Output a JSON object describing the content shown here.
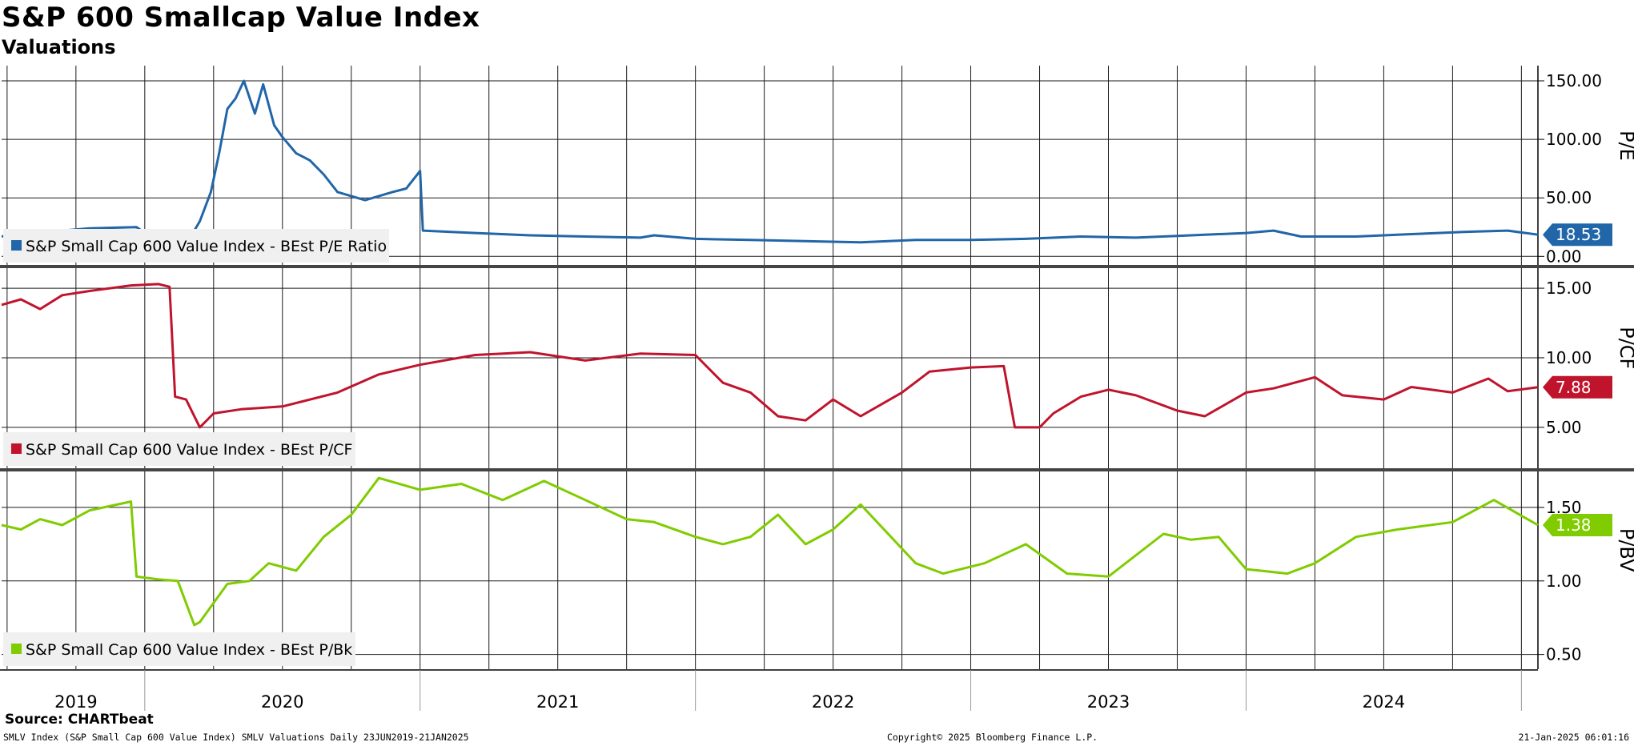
{
  "header": {
    "title": "S&P 600 Smallcap Value Index",
    "subtitle": "Valuations"
  },
  "footer": {
    "source": "Source: CHARTbeat",
    "left": "SMLV Index (S&P Small Cap 600 Value Index) SMLV Valuations  Daily 23JUN2019-21JAN2025",
    "middle": "Copyright© 2025 Bloomberg Finance L.P.",
    "right": "21-Jan-2025 06:01:16"
  },
  "chart_data": {
    "type": "line",
    "x_axis": {
      "tick_labels": [
        "2019",
        "2020",
        "2021",
        "2022",
        "2023",
        "2024"
      ],
      "label_dates": [
        2019.75,
        2020.5,
        2021.5,
        2022.5,
        2023.5,
        2024.5
      ],
      "range": [
        2019.48,
        2025.06
      ],
      "year_boundaries": [
        2020.0,
        2021.0,
        2022.0,
        2023.0,
        2024.0,
        2025.0
      ],
      "vertical_gridlines": [
        2019.5,
        2019.75,
        2020.25,
        2020.5,
        2020.75,
        2021.25,
        2021.5,
        2021.75,
        2022.25,
        2022.5,
        2022.75,
        2023.25,
        2023.5,
        2023.75,
        2024.25,
        2024.5,
        2024.75
      ]
    },
    "panels": [
      {
        "id": "pe",
        "axis_title": "P/E",
        "legend": "S&P Small Cap 600 Value Index - BEst P/E Ratio",
        "color": "#2166a8",
        "last_value": "18.53",
        "ylim": [
          -8,
          163
        ],
        "ticks": [
          0,
          50,
          100,
          150
        ],
        "tick_labels": [
          "0.00",
          "50.00",
          "100.00",
          "150.00"
        ],
        "x": [
          2019.48,
          2019.55,
          2019.7,
          2019.8,
          2019.97,
          2020.02,
          2020.1,
          2020.16,
          2020.2,
          2020.24,
          2020.27,
          2020.3,
          2020.33,
          2020.36,
          2020.4,
          2020.43,
          2020.47,
          2020.5,
          2020.55,
          2020.6,
          2020.65,
          2020.7,
          2020.8,
          2020.9,
          2020.95,
          2021.0,
          2021.01,
          2021.2,
          2021.4,
          2021.6,
          2021.8,
          2021.85,
          2022.0,
          2022.2,
          2022.4,
          2022.6,
          2022.8,
          2023.0,
          2023.2,
          2023.4,
          2023.6,
          2023.8,
          2024.0,
          2024.1,
          2024.2,
          2024.4,
          2024.6,
          2024.8,
          2024.95,
          2025.06
        ],
        "y": [
          17,
          20,
          22,
          24,
          25,
          17,
          12,
          14,
          30,
          55,
          88,
          126,
          135,
          150,
          122,
          147,
          112,
          102,
          88,
          82,
          70,
          55,
          48,
          55,
          58,
          73,
          22,
          20,
          18,
          17,
          16,
          18,
          15,
          14,
          13,
          12,
          14,
          14,
          15,
          17,
          16,
          18,
          20,
          22,
          17,
          17,
          19,
          21,
          22,
          18.53
        ]
      },
      {
        "id": "pcf",
        "axis_title": "P/CF",
        "legend": "S&P Small Cap 600 Value Index - BEst P/CF",
        "color": "#c0142d",
        "last_value": "7.88",
        "ylim": [
          2.0,
          16.5
        ],
        "ticks": [
          5,
          10,
          15
        ],
        "tick_labels": [
          "5.00",
          "10.00",
          "15.00"
        ],
        "x": [
          2019.48,
          2019.55,
          2019.62,
          2019.7,
          2019.8,
          2019.95,
          2020.05,
          2020.09,
          2020.11,
          2020.15,
          2020.2,
          2020.25,
          2020.35,
          2020.5,
          2020.7,
          2020.85,
          2021.0,
          2021.2,
          2021.4,
          2021.6,
          2021.8,
          2022.0,
          2022.1,
          2022.2,
          2022.3,
          2022.4,
          2022.5,
          2022.6,
          2022.75,
          2022.85,
          2023.0,
          2023.12,
          2023.16,
          2023.25,
          2023.3,
          2023.4,
          2023.5,
          2023.6,
          2023.75,
          2023.85,
          2024.0,
          2024.1,
          2024.25,
          2024.35,
          2024.5,
          2024.6,
          2024.75,
          2024.88,
          2024.95,
          2025.06
        ],
        "y": [
          13.8,
          14.2,
          13.5,
          14.5,
          14.8,
          15.2,
          15.3,
          15.1,
          7.2,
          7.0,
          5.0,
          6.0,
          6.3,
          6.5,
          7.5,
          8.8,
          9.5,
          10.2,
          10.4,
          9.8,
          10.3,
          10.2,
          8.2,
          7.5,
          5.8,
          5.5,
          7.0,
          5.8,
          7.5,
          9.0,
          9.3,
          9.4,
          5.0,
          5.0,
          6.0,
          7.2,
          7.7,
          7.3,
          6.2,
          5.8,
          7.5,
          7.8,
          8.6,
          7.3,
          7.0,
          7.9,
          7.5,
          8.5,
          7.6,
          7.88
        ]
      },
      {
        "id": "pbv",
        "axis_title": "P/BV",
        "legend": "S&P Small Cap 600 Value Index - BEst P/Bk",
        "color": "#80cc00",
        "last_value": "1.38",
        "ylim": [
          0.4,
          1.75
        ],
        "ticks": [
          0.5,
          1.0,
          1.5
        ],
        "tick_labels": [
          "0.50",
          "1.00",
          "1.50"
        ],
        "x": [
          2019.48,
          2019.55,
          2019.62,
          2019.7,
          2019.8,
          2019.95,
          2019.97,
          2020.05,
          2020.12,
          2020.18,
          2020.2,
          2020.25,
          2020.3,
          2020.38,
          2020.45,
          2020.55,
          2020.65,
          2020.75,
          2020.85,
          2021.0,
          2021.15,
          2021.3,
          2021.45,
          2021.6,
          2021.75,
          2021.85,
          2022.0,
          2022.1,
          2022.2,
          2022.3,
          2022.4,
          2022.5,
          2022.6,
          2022.8,
          2022.9,
          2023.05,
          2023.2,
          2023.35,
          2023.5,
          2023.7,
          2023.8,
          2023.9,
          2024.0,
          2024.05,
          2024.15,
          2024.25,
          2024.4,
          2024.55,
          2024.75,
          2024.9,
          2025.06
        ],
        "y": [
          1.38,
          1.35,
          1.42,
          1.38,
          1.48,
          1.54,
          1.03,
          1.01,
          1.0,
          0.7,
          0.72,
          0.85,
          0.98,
          1.0,
          1.12,
          1.07,
          1.3,
          1.45,
          1.7,
          1.62,
          1.66,
          1.55,
          1.68,
          1.55,
          1.42,
          1.4,
          1.3,
          1.25,
          1.3,
          1.45,
          1.25,
          1.35,
          1.52,
          1.12,
          1.05,
          1.12,
          1.25,
          1.05,
          1.03,
          1.32,
          1.28,
          1.3,
          1.08,
          1.07,
          1.05,
          1.12,
          1.3,
          1.35,
          1.4,
          1.55,
          1.38
        ]
      }
    ]
  }
}
